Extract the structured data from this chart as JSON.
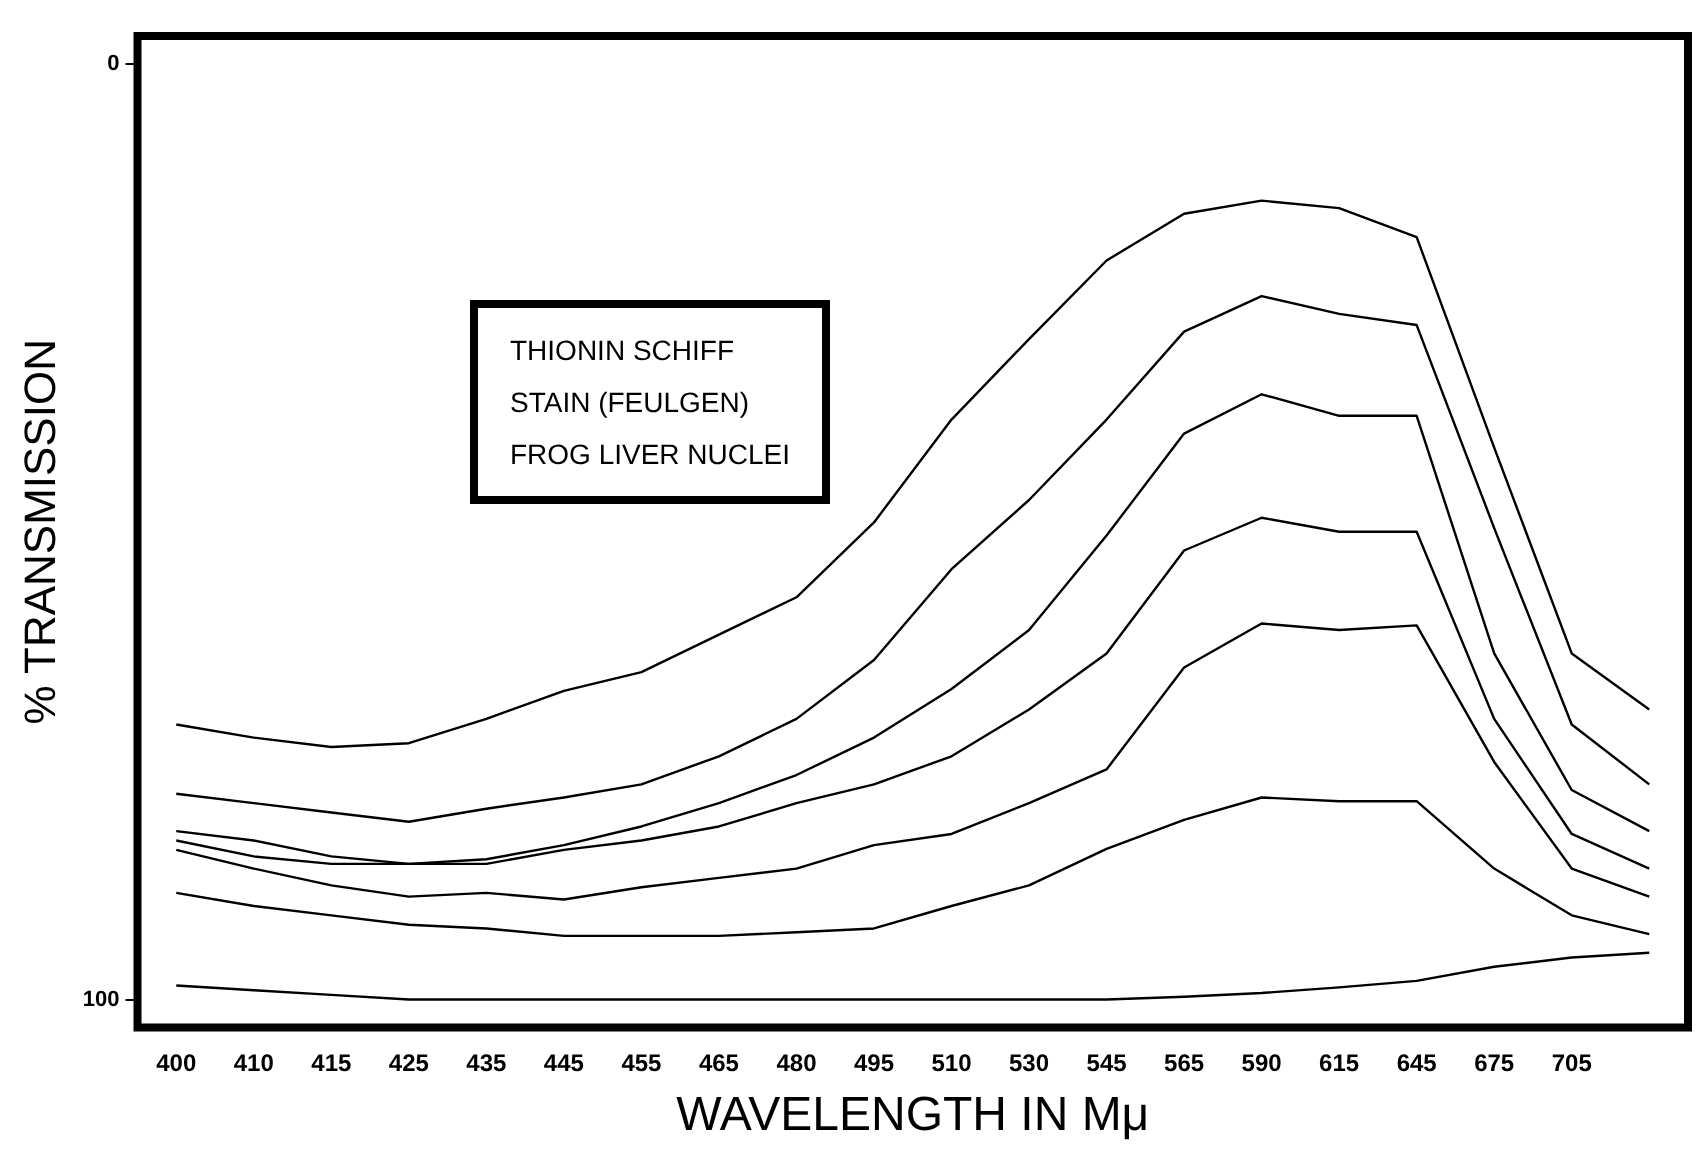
{
  "chart_data": {
    "type": "line",
    "xlabel": "WAVELENGTH IN Mμ",
    "ylabel": "% TRANSMISSION",
    "annotations": [
      "THIONIN SCHIFF",
      "STAIN (FEULGEN)",
      "FROG LIVER NUCLEI"
    ],
    "categories": [
      "400",
      "410",
      "415",
      "425",
      "435",
      "445",
      "455",
      "465",
      "480",
      "495",
      "510",
      "530",
      "545",
      "565",
      "590",
      "615",
      "645",
      "675",
      "705",
      null
    ],
    "ylim": [
      103,
      -3
    ],
    "yticks": [
      0,
      100
    ],
    "grid": false,
    "legend": false,
    "marker": "none",
    "line_style": "solid",
    "series": [
      {
        "color": "#000000",
        "values": [
          70.6,
          72,
          73,
          72.6,
          70,
          67,
          65,
          61,
          57,
          49,
          38,
          29.4,
          21,
          16,
          14.6,
          15.4,
          18.5,
          41,
          63,
          69
        ]
      },
      {
        "color": "#000000",
        "values": [
          78,
          79,
          80,
          81,
          79.6,
          78.4,
          77,
          74,
          70,
          63.7,
          54,
          46.6,
          38,
          28.6,
          24.8,
          26.7,
          27.9,
          49.6,
          70.6,
          77
        ]
      },
      {
        "color": "#000000",
        "values": [
          82,
          83,
          84.7,
          85.5,
          85,
          83.5,
          81.5,
          79,
          76,
          72,
          66.8,
          60.5,
          50.4,
          39.5,
          35.3,
          37.6,
          37.6,
          63,
          77.6,
          82
        ]
      },
      {
        "color": "#000000",
        "values": [
          83,
          84.7,
          85.5,
          85.5,
          85.5,
          84,
          83,
          81.5,
          79,
          77,
          74,
          69,
          63,
          52,
          48.5,
          50,
          50,
          70,
          82.3,
          86
        ]
      },
      {
        "color": "#000000",
        "values": [
          84,
          86,
          87.8,
          89,
          88.6,
          89.3,
          88,
          87,
          86,
          83.5,
          82.3,
          79,
          75.4,
          64.5,
          59.8,
          60.5,
          60,
          74.6,
          86,
          89
        ]
      },
      {
        "color": "#000000",
        "values": [
          88.6,
          90,
          91,
          92,
          92.4,
          93.2,
          93.2,
          93.2,
          92.8,
          92.4,
          90,
          87.8,
          83.9,
          80.8,
          78.4,
          78.8,
          78.8,
          86,
          91,
          93
        ]
      },
      {
        "color": "#000000",
        "values": [
          98.5,
          99,
          99.5,
          100,
          100,
          100,
          100,
          100,
          100,
          100,
          100,
          100,
          100,
          99.7,
          99.3,
          98.7,
          98,
          96.5,
          95.5,
          95
        ]
      }
    ]
  }
}
